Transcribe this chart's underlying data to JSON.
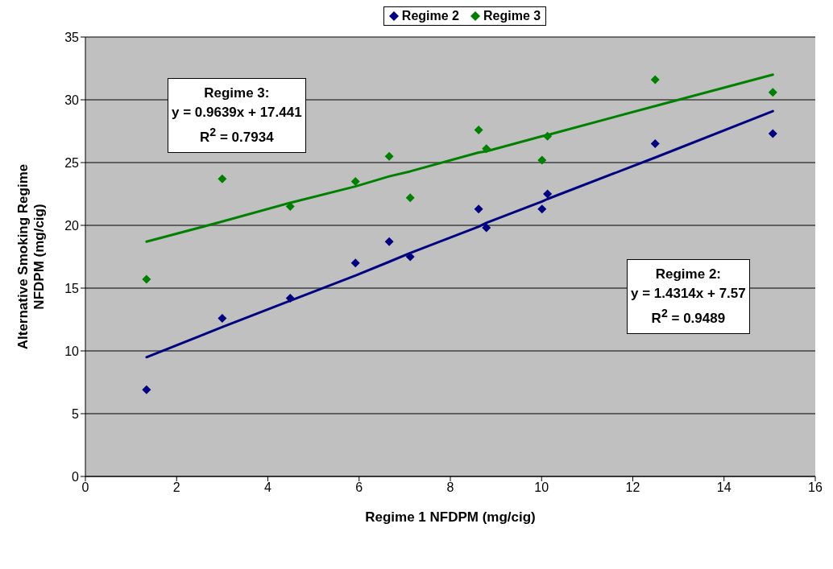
{
  "chart_data": {
    "type": "scatter",
    "xlabel": "Regime 1 NFDPM (mg/cig)",
    "ylabel": "Alternative Smoking Regime\nNFDPM (mg/cig)",
    "x": [
      1.34,
      3.0,
      4.49,
      5.92,
      6.66,
      7.12,
      8.62,
      8.79,
      10.01,
      10.13,
      12.49,
      15.07
    ],
    "series": [
      {
        "name": "Regime 2",
        "color": "#000080",
        "values": [
          6.9,
          12.6,
          14.2,
          17.0,
          18.7,
          17.5,
          21.3,
          19.8,
          21.3,
          22.5,
          26.5,
          27.3
        ]
      },
      {
        "name": "Regime 3",
        "color": "#008000",
        "values": [
          15.7,
          23.7,
          21.5,
          23.5,
          25.5,
          22.2,
          27.6,
          26.1,
          25.2,
          27.1,
          31.6,
          30.6
        ]
      },
      {
        "type": "line",
        "marker": "none",
        "color": "#000080",
        "values": [
          9.5,
          11.9,
          14.0,
          16.0,
          17.1,
          17.8,
          19.9,
          20.2,
          21.9,
          22.1,
          25.4,
          29.1
        ]
      },
      {
        "type": "line",
        "marker": "none",
        "color": "#008000",
        "values": [
          18.7,
          20.3,
          21.8,
          23.1,
          23.9,
          24.3,
          25.8,
          25.9,
          27.1,
          27.2,
          29.5,
          32.0
        ]
      }
    ],
    "annotations": [
      "Regime 3:\ny = 0.9639x + 17.441\nR$^{2}$ = 0.7934",
      "Regime 2:\ny = 1.4314x + 7.57\nR$^{2}$ = 0.9489"
    ],
    "xlim": [
      0,
      16
    ],
    "xticks": [
      0,
      2,
      4,
      6,
      8,
      10,
      12,
      14,
      16
    ],
    "ylim": [
      0,
      35
    ],
    "yticks": [
      0,
      5,
      10,
      15,
      20,
      25,
      30,
      35
    ],
    "grid": "y",
    "legend": "top",
    "marker": "diamond"
  }
}
